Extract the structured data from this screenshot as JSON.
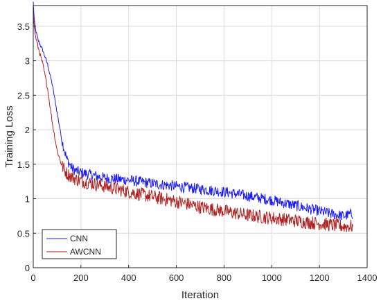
{
  "chart_data": {
    "type": "line",
    "title": "",
    "xlabel": "Iteration",
    "ylabel": "Training Loss",
    "xlim": [
      0,
      1400
    ],
    "ylim": [
      0,
      3.8
    ],
    "xticks": [
      0,
      200,
      400,
      600,
      800,
      1000,
      1200,
      1400
    ],
    "yticks": [
      0,
      0.5,
      1,
      1.5,
      2,
      2.5,
      3,
      3.5
    ],
    "grid": true,
    "legend_position": "bottom-left",
    "series": [
      {
        "name": "CNN",
        "color": "#1a1aff",
        "x": [
          0,
          5,
          10,
          20,
          40,
          60,
          80,
          100,
          120,
          140,
          160,
          180,
          200,
          300,
          400,
          500,
          600,
          700,
          800,
          900,
          1000,
          1100,
          1200,
          1250,
          1300,
          1340
        ],
        "y": [
          3.85,
          3.55,
          3.45,
          3.3,
          3.15,
          2.95,
          2.65,
          2.25,
          1.85,
          1.58,
          1.45,
          1.4,
          1.38,
          1.3,
          1.27,
          1.22,
          1.18,
          1.14,
          1.1,
          1.04,
          0.98,
          0.9,
          0.82,
          0.78,
          0.75,
          0.78
        ],
        "noise": 0.08
      },
      {
        "name": "AWCNN",
        "color": "#b02020",
        "x": [
          0,
          5,
          10,
          20,
          40,
          60,
          80,
          100,
          120,
          140,
          160,
          180,
          200,
          300,
          400,
          500,
          600,
          700,
          800,
          900,
          1000,
          1100,
          1200,
          1250,
          1300,
          1340
        ],
        "y": [
          3.7,
          3.45,
          3.35,
          3.2,
          2.95,
          2.6,
          2.1,
          1.7,
          1.48,
          1.37,
          1.32,
          1.28,
          1.26,
          1.18,
          1.1,
          1.03,
          0.96,
          0.88,
          0.82,
          0.76,
          0.72,
          0.68,
          0.64,
          0.62,
          0.6,
          0.6
        ],
        "noise": 0.1
      }
    ]
  }
}
